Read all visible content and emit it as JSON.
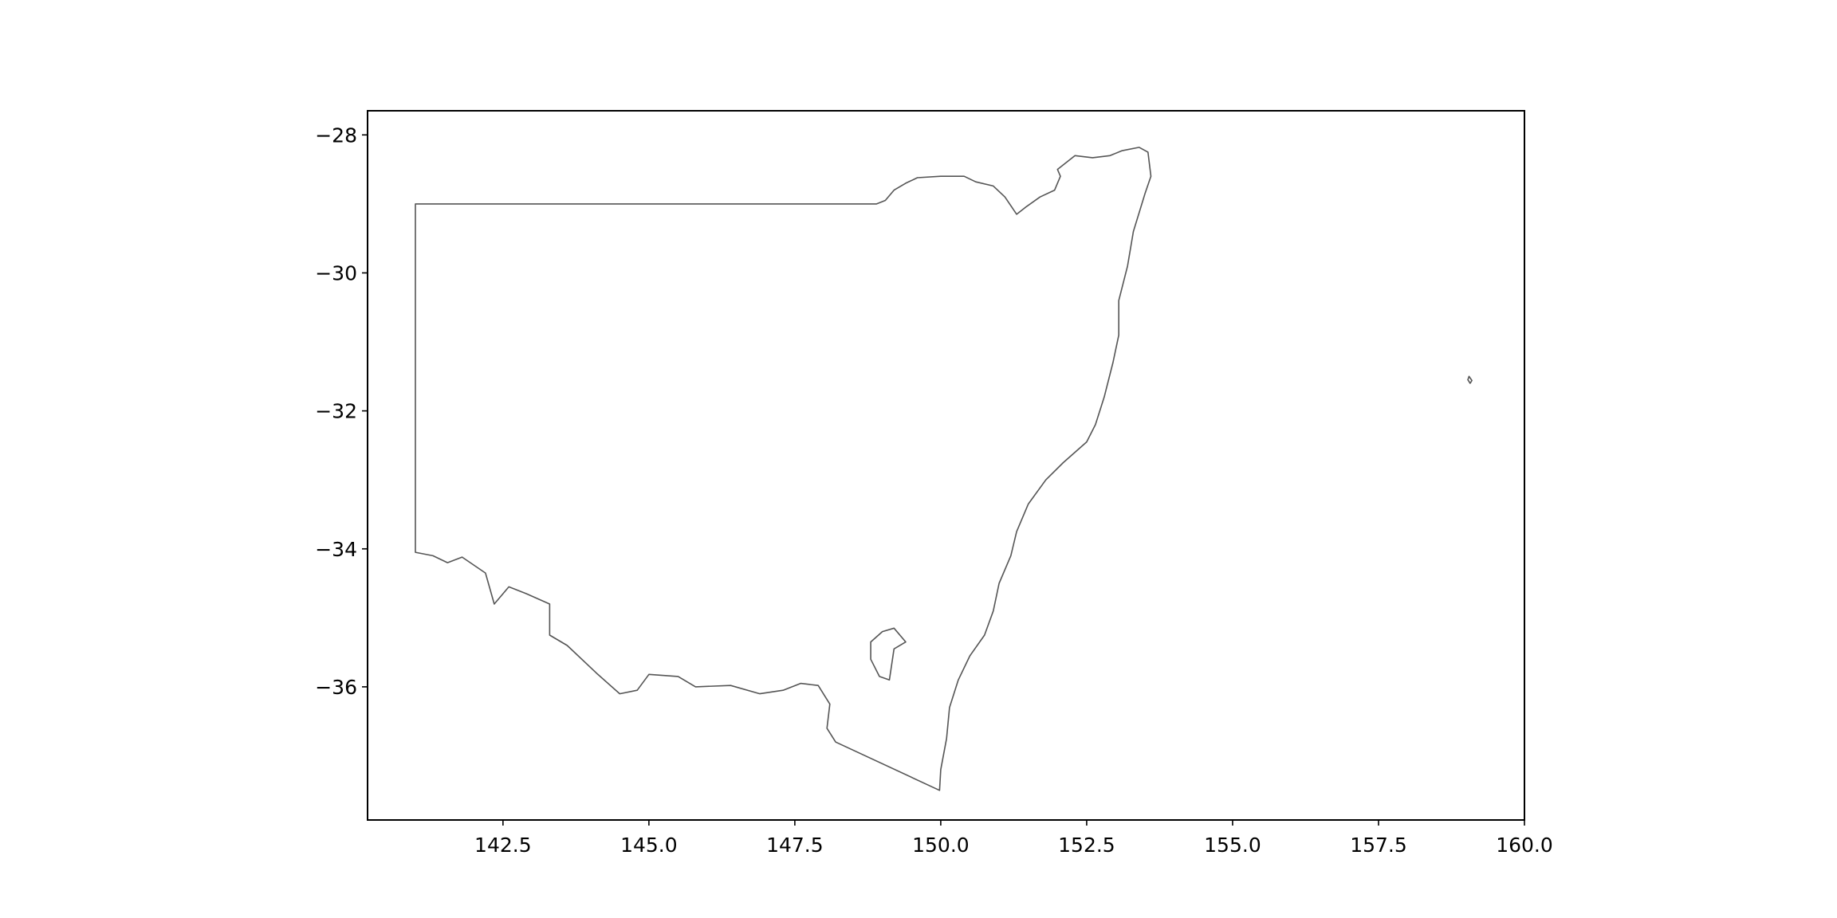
{
  "chart_data": {
    "type": "map",
    "title": "",
    "xlabel": "",
    "ylabel": "",
    "xlim": [
      140.18,
      160.0
    ],
    "ylim": [
      -37.93,
      -27.65
    ],
    "grid": false,
    "xticks": [
      142.5,
      145.0,
      147.5,
      150.0,
      152.5,
      155.0,
      157.5,
      160.0
    ],
    "xtick_labels": [
      "142.5",
      "145.0",
      "147.5",
      "150.0",
      "152.5",
      "155.0",
      "157.5",
      "160.0"
    ],
    "yticks": [
      -28,
      -30,
      -32,
      -34,
      -36
    ],
    "ytick_labels": [
      "−28",
      "−30",
      "−32",
      "−34",
      "−36"
    ],
    "outline_color": "#555555",
    "shapes": [
      {
        "name": "mainland",
        "coords": [
          [
            141.0,
            -29.0
          ],
          [
            148.9,
            -29.0
          ],
          [
            149.05,
            -28.95
          ],
          [
            149.2,
            -28.8
          ],
          [
            149.4,
            -28.7
          ],
          [
            149.6,
            -28.62
          ],
          [
            150.0,
            -28.6
          ],
          [
            150.4,
            -28.6
          ],
          [
            150.6,
            -28.68
          ],
          [
            150.9,
            -28.74
          ],
          [
            151.1,
            -28.9
          ],
          [
            151.3,
            -29.15
          ],
          [
            151.45,
            -29.05
          ],
          [
            151.7,
            -28.9
          ],
          [
            151.95,
            -28.8
          ],
          [
            152.05,
            -28.6
          ],
          [
            152.0,
            -28.5
          ],
          [
            152.3,
            -28.3
          ],
          [
            152.6,
            -28.33
          ],
          [
            152.9,
            -28.3
          ],
          [
            153.1,
            -28.23
          ],
          [
            153.4,
            -28.18
          ],
          [
            153.55,
            -28.25
          ],
          [
            153.6,
            -28.6
          ],
          [
            153.5,
            -28.85
          ],
          [
            153.3,
            -29.4
          ],
          [
            153.2,
            -29.9
          ],
          [
            153.05,
            -30.4
          ],
          [
            153.05,
            -30.9
          ],
          [
            152.95,
            -31.3
          ],
          [
            152.8,
            -31.8
          ],
          [
            152.65,
            -32.2
          ],
          [
            152.5,
            -32.45
          ],
          [
            152.1,
            -32.75
          ],
          [
            151.8,
            -33.0
          ],
          [
            151.5,
            -33.35
          ],
          [
            151.3,
            -33.75
          ],
          [
            151.2,
            -34.1
          ],
          [
            151.0,
            -34.5
          ],
          [
            150.9,
            -34.9
          ],
          [
            150.75,
            -35.25
          ],
          [
            150.5,
            -35.55
          ],
          [
            150.3,
            -35.9
          ],
          [
            150.15,
            -36.3
          ],
          [
            150.1,
            -36.75
          ],
          [
            150.0,
            -37.2
          ],
          [
            149.98,
            -37.5
          ],
          [
            148.2,
            -36.8
          ],
          [
            148.05,
            -36.6
          ],
          [
            148.1,
            -36.25
          ],
          [
            147.9,
            -35.98
          ],
          [
            147.6,
            -35.95
          ],
          [
            147.3,
            -36.05
          ],
          [
            146.9,
            -36.1
          ],
          [
            146.4,
            -35.98
          ],
          [
            145.8,
            -36.0
          ],
          [
            145.5,
            -35.85
          ],
          [
            145.0,
            -35.82
          ],
          [
            144.8,
            -36.05
          ],
          [
            144.5,
            -36.1
          ],
          [
            144.1,
            -35.8
          ],
          [
            143.6,
            -35.4
          ],
          [
            143.3,
            -35.25
          ],
          [
            143.3,
            -34.8
          ],
          [
            142.9,
            -34.65
          ],
          [
            142.6,
            -34.55
          ],
          [
            142.35,
            -34.8
          ],
          [
            142.2,
            -34.35
          ],
          [
            141.8,
            -34.12
          ],
          [
            141.55,
            -34.2
          ],
          [
            141.3,
            -34.1
          ],
          [
            141.0,
            -34.05
          ],
          [
            141.0,
            -29.0
          ]
        ]
      },
      {
        "name": "territory-enclave",
        "coords": [
          [
            149.2,
            -35.15
          ],
          [
            149.4,
            -35.35
          ],
          [
            149.2,
            -35.45
          ],
          [
            149.12,
            -35.9
          ],
          [
            148.95,
            -35.85
          ],
          [
            148.8,
            -35.6
          ],
          [
            148.8,
            -35.35
          ],
          [
            149.0,
            -35.2
          ],
          [
            149.2,
            -35.15
          ]
        ]
      },
      {
        "name": "offshore-island",
        "coords": [
          [
            159.05,
            -31.5
          ],
          [
            159.1,
            -31.56
          ],
          [
            159.07,
            -31.6
          ],
          [
            159.03,
            -31.55
          ],
          [
            159.05,
            -31.5
          ]
        ]
      }
    ]
  }
}
